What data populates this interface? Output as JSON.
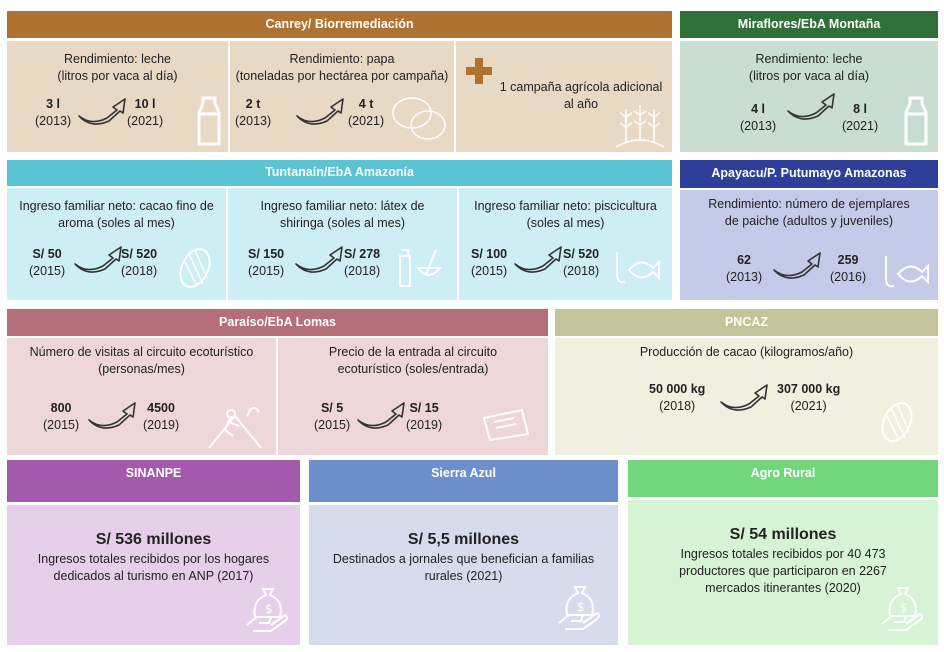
{
  "canrey": {
    "title": "Canrey/ Biorremediación",
    "color": "#b07230",
    "leche": {
      "label1": "Rendimiento: leche",
      "label2": "(litros por vaca al día)",
      "from": "3 l",
      "from_year": "(2013)",
      "to": "10 l",
      "to_year": "(2021)",
      "icon": "milk-bottle-icon"
    },
    "papa": {
      "label1": "Rendimiento: papa",
      "label2": "(toneladas por hectárea por campaña)",
      "from": "2 t",
      "from_year": "(2013)",
      "to": "4 t",
      "to_year": "(2021)",
      "icon": "potato-icon"
    },
    "campana": {
      "label1": "1 campaña agrícola adicional",
      "label2": "al año",
      "icon": "plus-icon"
    }
  },
  "miraflores": {
    "title": "Miraflores/EbA Montaña",
    "color": "#2e7038",
    "label1": "Rendimiento: leche",
    "label2": "(litros por vaca al día)",
    "from": "4 l",
    "from_year": "(2013)",
    "to": "8 l",
    "to_year": "(2021)"
  },
  "tuntanain": {
    "title": "Tuntanaín/EbA Amazonía",
    "color": "#5bc4d4",
    "cacao": {
      "label1": "Ingreso familiar neto: cacao fino de",
      "label2": "aroma (soles al mes)",
      "from": "S/ 50",
      "from_year": "(2015)",
      "to": "S/ 520",
      "to_year": "(2018)"
    },
    "latex": {
      "label1": "Ingreso familiar neto: látex de",
      "label2": "shiringa (soles al mes)",
      "from": "S/ 150",
      "from_year": "(2015)",
      "to": "S/ 278",
      "to_year": "(2018)"
    },
    "pesca": {
      "label1": "Ingreso familiar neto: piscicultura",
      "label2": "(soles al mes)",
      "from": "S/ 100",
      "from_year": "(2015)",
      "to": "S/ 520",
      "to_year": "(2018)"
    }
  },
  "apayacu": {
    "title": "Apayacu/P. Putumayo Amazonas",
    "color": "#2e3f99",
    "label1": "Rendimiento: número de ejemplares",
    "label2": "de paiche (adultos y juveniles)",
    "from": "62",
    "from_year": "(2013)",
    "to": "259",
    "to_year": "(2016)"
  },
  "paraiso": {
    "title": "Paraíso/EbA Lomas",
    "color": "#b56f78",
    "visitas": {
      "label1": "Número de visitas al circuito ecoturístico",
      "label2": "(personas/mes)",
      "from": "800",
      "from_year": "(2015)",
      "to": "4500",
      "to_year": "(2019)"
    },
    "precio": {
      "label1": "Precio de la entrada al circuito",
      "label2": "ecoturístico (soles/entrada)",
      "from": "S/ 5",
      "from_year": "(2015)",
      "to": "S/ 15",
      "to_year": "(2019)"
    }
  },
  "pncaz": {
    "title": "PNCAZ",
    "color": "#c4c49a",
    "label1": "Producción de cacao (kilogramos/año)",
    "from": "50 000 kg",
    "from_year": "(2018)",
    "to": "307 000 kg",
    "to_year": "(2021)"
  },
  "sinanpe": {
    "title": "SINANPE",
    "color": "#a45aac",
    "amount": "S/ 536 millones",
    "desc1": "Ingresos totales recibidos por los hogares",
    "desc2": "dedicados al turismo en ANP (2017)"
  },
  "sierra": {
    "title": "Sierra Azul",
    "color": "#6d8fcc",
    "amount": "S/ 5,5 millones",
    "desc1": "Destinados a jornales que benefician a familias",
    "desc2": "rurales (2021)"
  },
  "agro": {
    "title": "Agro Rural",
    "color": "#72d67a",
    "amount": "S/ 54 millones",
    "desc1": "Ingresos totales recibidos por 40 473",
    "desc2": "productores que participaron en 2267",
    "desc3": "mercados itinerantes (2020)"
  }
}
